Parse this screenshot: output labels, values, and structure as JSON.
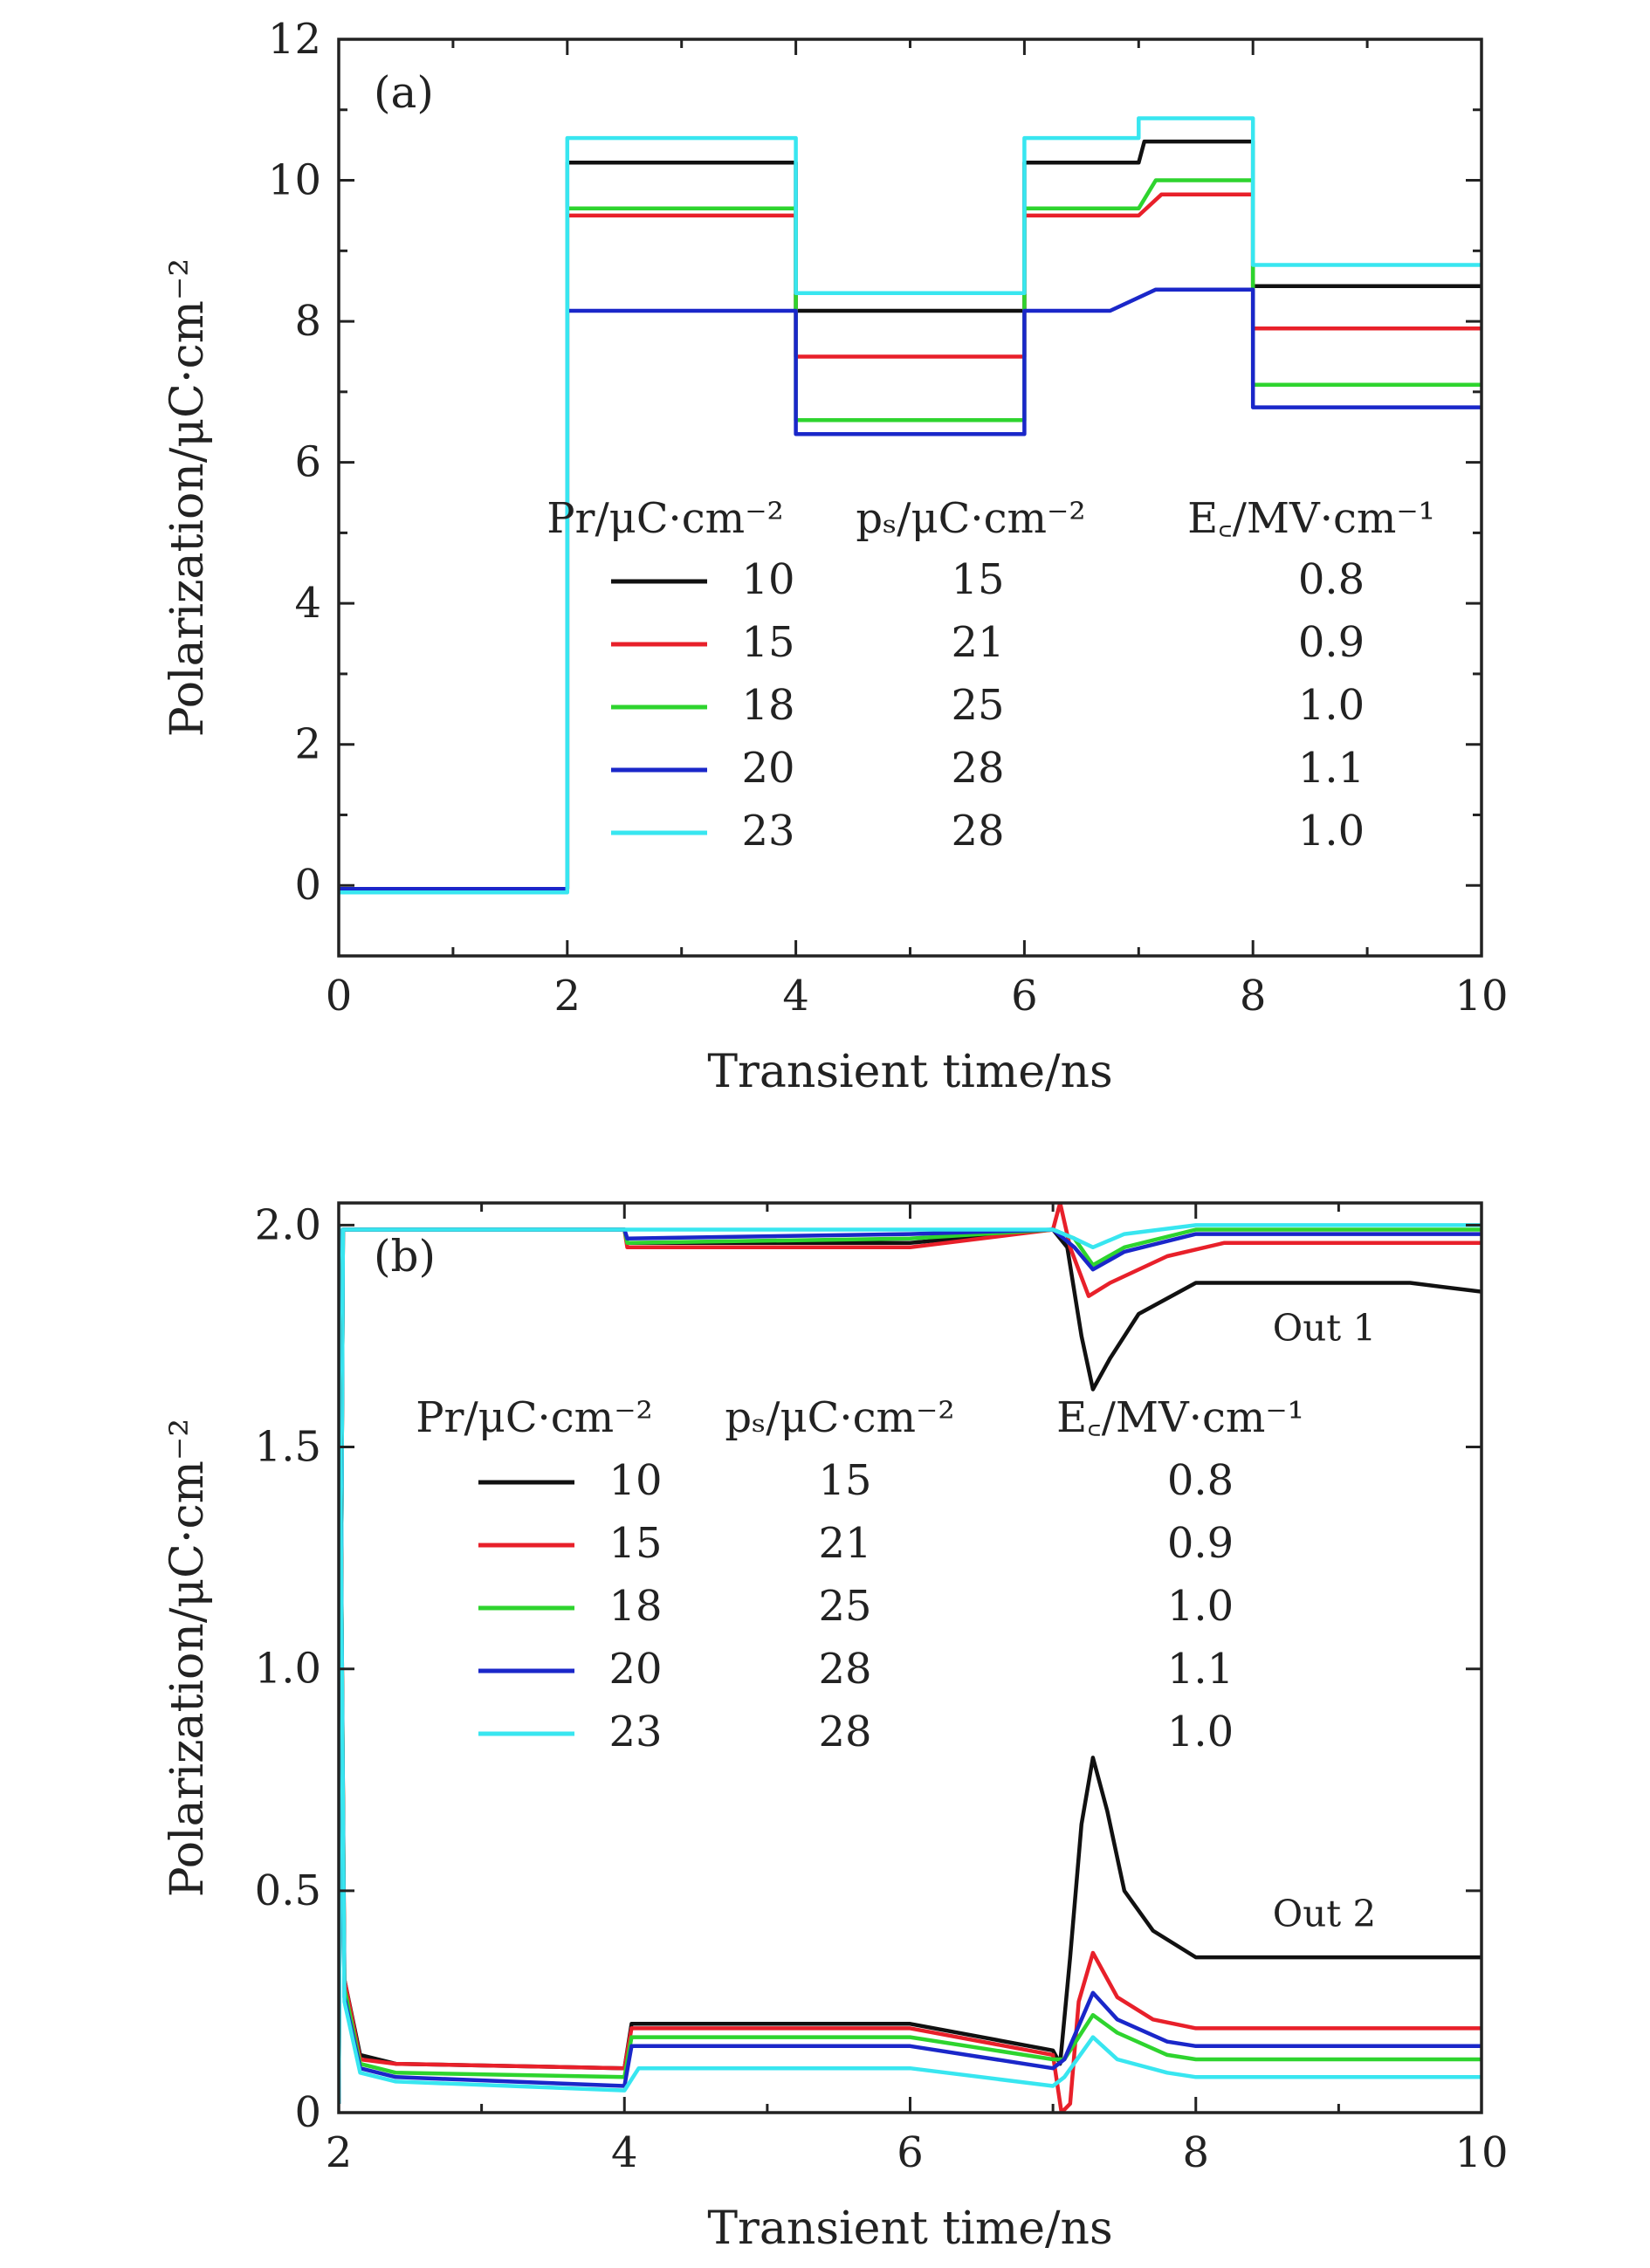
{
  "colors": {
    "black": "#111111",
    "red": "#e8202a",
    "green": "#2ed42e",
    "blue": "#1a27c9",
    "cyan": "#38e6f0",
    "axis": "#222222"
  },
  "legend": {
    "headers": [
      "Pr/μC·cm⁻²",
      "pₛ/μC·cm⁻²",
      "E꜀/MV·cm⁻¹"
    ],
    "rows": [
      {
        "pr": "10",
        "ps": "15",
        "ec": "0.8",
        "color": "#111111"
      },
      {
        "pr": "15",
        "ps": "21",
        "ec": "0.9",
        "color": "#e8202a"
      },
      {
        "pr": "18",
        "ps": "25",
        "ec": "1.0",
        "color": "#2ed42e"
      },
      {
        "pr": "20",
        "ps": "28",
        "ec": "1.1",
        "color": "#1a27c9"
      },
      {
        "pr": "23",
        "ps": "28",
        "ec": "1.0",
        "color": "#38e6f0"
      }
    ]
  },
  "chart_data": [
    {
      "type": "line",
      "panel_label": "(a)",
      "xlabel": "Transient time/ns",
      "ylabel": "Polarization/μC·cm⁻²",
      "xlim": [
        0,
        10
      ],
      "ylim": [
        -1,
        12
      ],
      "xticks": [
        0,
        2,
        4,
        6,
        8,
        10
      ],
      "yticks": [
        0,
        2,
        4,
        6,
        8,
        10,
        12
      ],
      "grid": false,
      "legend_position": "center-right",
      "series": [
        {
          "name": "10",
          "color": "#111111",
          "points": [
            [
              0,
              -0.05
            ],
            [
              2,
              -0.05
            ],
            [
              2,
              10.25
            ],
            [
              4,
              10.25
            ],
            [
              4,
              8.15
            ],
            [
              6,
              8.15
            ],
            [
              6,
              10.25
            ],
            [
              7,
              10.25
            ],
            [
              7.05,
              10.55
            ],
            [
              8,
              10.55
            ],
            [
              8,
              8.5
            ],
            [
              10,
              8.5
            ]
          ]
        },
        {
          "name": "15",
          "color": "#e8202a",
          "points": [
            [
              0,
              -0.05
            ],
            [
              2,
              -0.05
            ],
            [
              2,
              9.5
            ],
            [
              4,
              9.5
            ],
            [
              4,
              7.5
            ],
            [
              6,
              7.5
            ],
            [
              6,
              9.5
            ],
            [
              7,
              9.5
            ],
            [
              7.2,
              9.8
            ],
            [
              8,
              9.8
            ],
            [
              8,
              7.9
            ],
            [
              10,
              7.9
            ]
          ]
        },
        {
          "name": "18",
          "color": "#2ed42e",
          "points": [
            [
              0,
              -0.05
            ],
            [
              2,
              -0.05
            ],
            [
              2,
              9.6
            ],
            [
              4,
              9.6
            ],
            [
              4,
              6.6
            ],
            [
              6,
              6.6
            ],
            [
              6,
              9.6
            ],
            [
              7,
              9.6
            ],
            [
              7.15,
              10.0
            ],
            [
              8,
              10.0
            ],
            [
              8,
              7.1
            ],
            [
              10,
              7.1
            ]
          ]
        },
        {
          "name": "20",
          "color": "#1a27c9",
          "points": [
            [
              0,
              -0.05
            ],
            [
              2,
              -0.05
            ],
            [
              2,
              8.15
            ],
            [
              4,
              8.15
            ],
            [
              4,
              6.4
            ],
            [
              6,
              6.4
            ],
            [
              6,
              8.15
            ],
            [
              6.75,
              8.15
            ],
            [
              7.15,
              8.45
            ],
            [
              8,
              8.45
            ],
            [
              8,
              6.78
            ],
            [
              10,
              6.78
            ]
          ]
        },
        {
          "name": "23",
          "color": "#38e6f0",
          "points": [
            [
              0,
              -0.1
            ],
            [
              2,
              -0.1
            ],
            [
              2,
              10.6
            ],
            [
              4,
              10.6
            ],
            [
              4,
              8.4
            ],
            [
              6,
              8.4
            ],
            [
              6,
              10.6
            ],
            [
              7,
              10.6
            ],
            [
              7,
              10.88
            ],
            [
              8,
              10.88
            ],
            [
              8,
              8.8
            ],
            [
              10,
              8.8
            ]
          ]
        }
      ]
    },
    {
      "type": "line",
      "panel_label": "(b)",
      "xlabel": "Transient time/ns",
      "ylabel": "Polarization/μC·cm⁻²",
      "xlim": [
        2,
        10
      ],
      "ylim": [
        0,
        2.05
      ],
      "xticks": [
        2,
        4,
        6,
        8,
        10
      ],
      "yticks": [
        0,
        0.5,
        1.0,
        1.5,
        2.0
      ],
      "ytick_labels": [
        "0",
        "0.5",
        "1.0",
        "1.5",
        "2.0"
      ],
      "grid": false,
      "legend_position": "center-left",
      "annotations": [
        {
          "text": "Out 1",
          "x": 8.9,
          "y": 1.74
        },
        {
          "text": "Out 2",
          "x": 8.9,
          "y": 0.42
        }
      ],
      "series": [
        {
          "name": "10 Out 1",
          "color": "#111111",
          "points": [
            [
              2,
              0.02
            ],
            [
              2.03,
              1.99
            ],
            [
              4,
              1.99
            ],
            [
              4.02,
              1.96
            ],
            [
              6,
              1.96
            ],
            [
              7,
              1.99
            ],
            [
              7.1,
              1.95
            ],
            [
              7.2,
              1.75
            ],
            [
              7.28,
              1.63
            ],
            [
              7.4,
              1.7
            ],
            [
              7.6,
              1.8
            ],
            [
              8,
              1.87
            ],
            [
              9.5,
              1.87
            ],
            [
              10,
              1.85
            ]
          ]
        },
        {
          "name": "15 Out 1",
          "color": "#e8202a",
          "points": [
            [
              2,
              0.02
            ],
            [
              2.03,
              1.99
            ],
            [
              4,
              1.99
            ],
            [
              4.02,
              1.95
            ],
            [
              6,
              1.95
            ],
            [
              7,
              1.99
            ],
            [
              7.05,
              2.05
            ],
            [
              7.12,
              1.95
            ],
            [
              7.25,
              1.84
            ],
            [
              7.4,
              1.87
            ],
            [
              7.8,
              1.93
            ],
            [
              8.2,
              1.96
            ],
            [
              10,
              1.96
            ]
          ]
        },
        {
          "name": "18 Out 1",
          "color": "#2ed42e",
          "points": [
            [
              2,
              0.02
            ],
            [
              2.03,
              1.99
            ],
            [
              4,
              1.99
            ],
            [
              4.02,
              1.96
            ],
            [
              6,
              1.97
            ],
            [
              7,
              1.99
            ],
            [
              7.15,
              1.97
            ],
            [
              7.28,
              1.91
            ],
            [
              7.5,
              1.95
            ],
            [
              8,
              1.99
            ],
            [
              10,
              1.99
            ]
          ]
        },
        {
          "name": "20 Out 1",
          "color": "#1a27c9",
          "points": [
            [
              2,
              0.02
            ],
            [
              2.03,
              1.99
            ],
            [
              4,
              1.99
            ],
            [
              4.02,
              1.97
            ],
            [
              6,
              1.98
            ],
            [
              7,
              1.99
            ],
            [
              7.15,
              1.95
            ],
            [
              7.28,
              1.9
            ],
            [
              7.5,
              1.94
            ],
            [
              8,
              1.98
            ],
            [
              10,
              1.98
            ]
          ]
        },
        {
          "name": "23 Out 1",
          "color": "#38e6f0",
          "points": [
            [
              2,
              0.02
            ],
            [
              2.03,
              1.99
            ],
            [
              4,
              1.99
            ],
            [
              4.02,
              1.99
            ],
            [
              6,
              1.99
            ],
            [
              7,
              1.99
            ],
            [
              7.15,
              1.97
            ],
            [
              7.28,
              1.95
            ],
            [
              7.5,
              1.98
            ],
            [
              8,
              2.0
            ],
            [
              10,
              2.0
            ]
          ]
        },
        {
          "name": "10 Out 2",
          "color": "#111111",
          "points": [
            [
              2,
              2.0
            ],
            [
              2.04,
              0.3
            ],
            [
              2.15,
              0.13
            ],
            [
              2.4,
              0.11
            ],
            [
              4,
              0.1
            ],
            [
              4.05,
              0.2
            ],
            [
              6,
              0.2
            ],
            [
              7,
              0.14
            ],
            [
              7.05,
              0.11
            ],
            [
              7.12,
              0.35
            ],
            [
              7.2,
              0.65
            ],
            [
              7.28,
              0.8
            ],
            [
              7.38,
              0.68
            ],
            [
              7.5,
              0.5
            ],
            [
              7.7,
              0.41
            ],
            [
              8,
              0.35
            ],
            [
              9,
              0.35
            ],
            [
              10,
              0.35
            ]
          ]
        },
        {
          "name": "15 Out 2",
          "color": "#e8202a",
          "points": [
            [
              2,
              2.0
            ],
            [
              2.04,
              0.3
            ],
            [
              2.15,
              0.12
            ],
            [
              2.4,
              0.11
            ],
            [
              4,
              0.1
            ],
            [
              4.05,
              0.19
            ],
            [
              6,
              0.19
            ],
            [
              7,
              0.13
            ],
            [
              7.06,
              0.0
            ],
            [
              7.12,
              0.02
            ],
            [
              7.18,
              0.25
            ],
            [
              7.28,
              0.36
            ],
            [
              7.45,
              0.26
            ],
            [
              7.7,
              0.21
            ],
            [
              8,
              0.19
            ],
            [
              10,
              0.19
            ]
          ]
        },
        {
          "name": "18 Out 2",
          "color": "#2ed42e",
          "points": [
            [
              2,
              2.0
            ],
            [
              2.04,
              0.28
            ],
            [
              2.15,
              0.11
            ],
            [
              2.4,
              0.09
            ],
            [
              4,
              0.08
            ],
            [
              4.05,
              0.17
            ],
            [
              6,
              0.17
            ],
            [
              7,
              0.12
            ],
            [
              7.08,
              0.12
            ],
            [
              7.28,
              0.22
            ],
            [
              7.45,
              0.18
            ],
            [
              7.8,
              0.13
            ],
            [
              8,
              0.12
            ],
            [
              10,
              0.12
            ]
          ]
        },
        {
          "name": "20 Out 2",
          "color": "#1a27c9",
          "points": [
            [
              2,
              2.0
            ],
            [
              2.04,
              0.26
            ],
            [
              2.15,
              0.1
            ],
            [
              2.4,
              0.08
            ],
            [
              4,
              0.06
            ],
            [
              4.05,
              0.15
            ],
            [
              6,
              0.15
            ],
            [
              7,
              0.1
            ],
            [
              7.08,
              0.12
            ],
            [
              7.28,
              0.27
            ],
            [
              7.45,
              0.21
            ],
            [
              7.8,
              0.16
            ],
            [
              8,
              0.15
            ],
            [
              10,
              0.15
            ]
          ]
        },
        {
          "name": "23 Out 2",
          "color": "#38e6f0",
          "points": [
            [
              2,
              2.0
            ],
            [
              2.04,
              0.25
            ],
            [
              2.15,
              0.09
            ],
            [
              2.4,
              0.07
            ],
            [
              4,
              0.05
            ],
            [
              4.1,
              0.1
            ],
            [
              6,
              0.1
            ],
            [
              7,
              0.06
            ],
            [
              7.08,
              0.08
            ],
            [
              7.28,
              0.17
            ],
            [
              7.45,
              0.12
            ],
            [
              7.8,
              0.09
            ],
            [
              8,
              0.08
            ],
            [
              10,
              0.08
            ]
          ]
        }
      ]
    }
  ]
}
